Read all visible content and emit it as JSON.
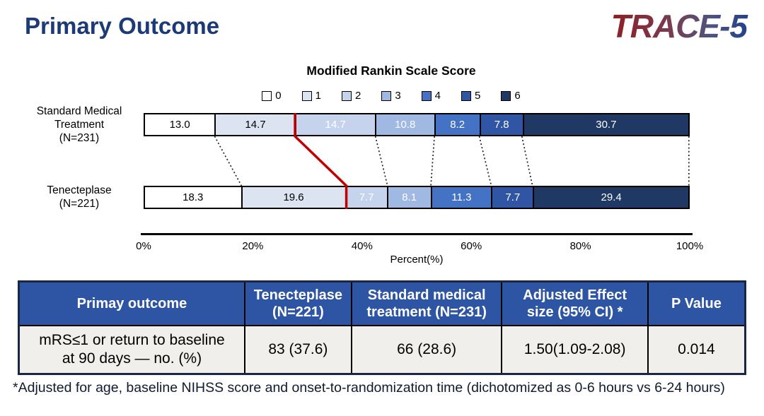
{
  "page": {
    "title": "Primary Outcome",
    "logo": "TRACE-5"
  },
  "chart_data": {
    "type": "bar",
    "variant": "horizontal-stacked",
    "title": "Modified Rankin Scale Score",
    "xlabel": "Percent(%)",
    "x_ticks": [
      "0%",
      "20%",
      "40%",
      "60%",
      "80%",
      "100%"
    ],
    "xlim": [
      0,
      100
    ],
    "legend": [
      "0",
      "1",
      "2",
      "3",
      "4",
      "5",
      "6"
    ],
    "colors": [
      "#ffffff",
      "#dce4f2",
      "#c5d3ec",
      "#9fb9e3",
      "#4472c4",
      "#2f55a4",
      "#1f3864"
    ],
    "label_colors": [
      "#000000",
      "#000000",
      "#ffffff",
      "#ffffff",
      "#ffffff",
      "#ffffff",
      "#ffffff"
    ],
    "rows": [
      {
        "id": "standard-medical-treatment",
        "label": "Standard Medical\nTreatment\n(N=231)",
        "values": [
          13.0,
          14.7,
          14.7,
          10.8,
          8.2,
          7.8,
          30.7
        ]
      },
      {
        "id": "tenecteplase",
        "label": "Tenecteplase\n(N=221)",
        "values": [
          18.3,
          19.6,
          7.7,
          8.1,
          11.3,
          7.7,
          29.4
        ]
      }
    ],
    "divider": {
      "after_segment": 1,
      "color": "#c00000"
    }
  },
  "table": {
    "headers": [
      "Primay outcome",
      "Tenecteplase\n(N=221)",
      "Standard medical\ntreatment (N=231)",
      "Adjusted Effect\nsize (95% CI) *",
      "P Value"
    ],
    "rows": [
      [
        "mRS≤1 or return to baseline\nat 90 days — no. (%)",
        "83 (37.6)",
        "66 (28.6)",
        "1.50(1.09-2.08)",
        "0.014"
      ]
    ]
  },
  "footnote": "*Adjusted for age, baseline NIHSS score and onset-to-randomization time (dichotomized as 0-6 hours vs 6-24 hours)"
}
